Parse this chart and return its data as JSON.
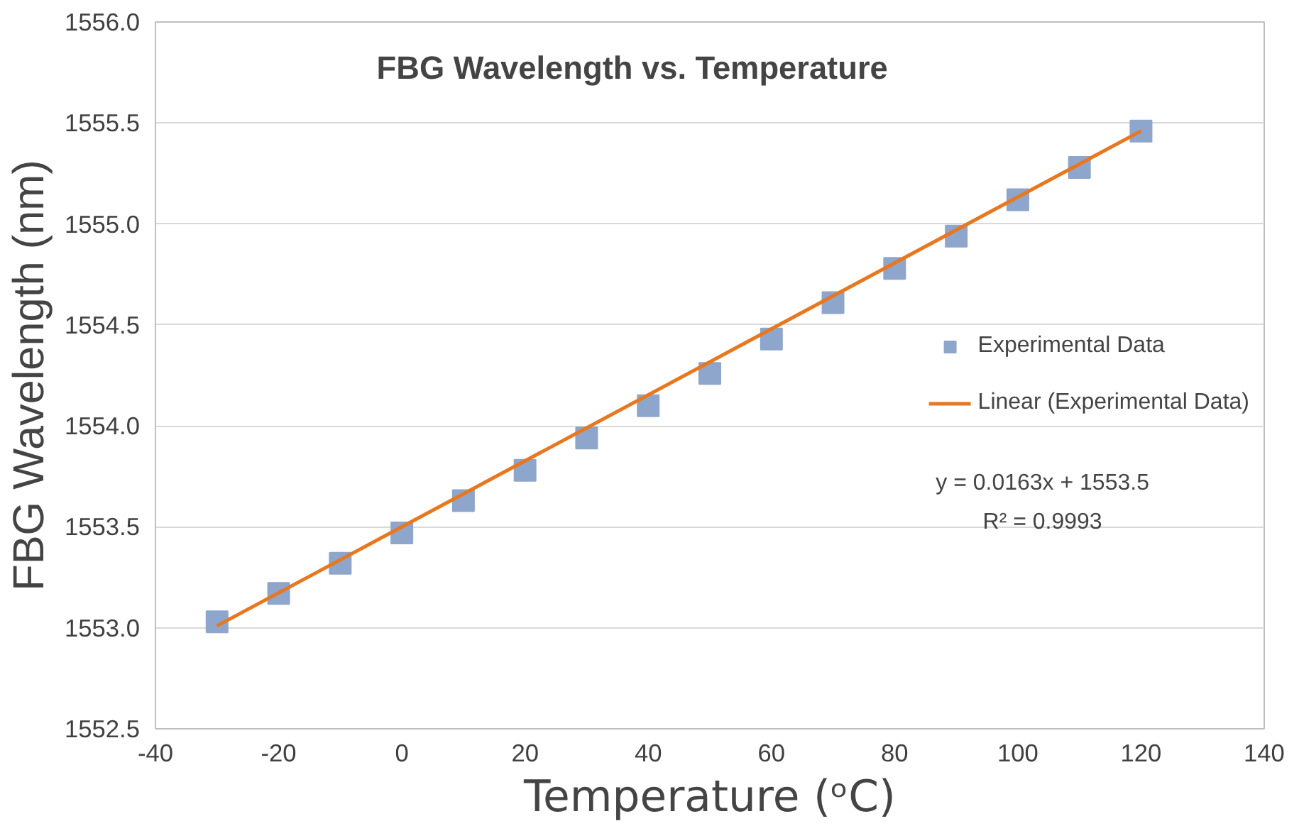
{
  "chart_data": {
    "type": "scatter",
    "title": "FBG Wavelength vs. Temperature",
    "xlabel": "Temperature (ᵒC)",
    "ylabel": "FBG Wavelength (nm)",
    "x": [
      -30,
      -20,
      -10,
      0,
      10,
      20,
      30,
      40,
      50,
      60,
      70,
      80,
      90,
      100,
      110,
      120
    ],
    "series": [
      {
        "name": "Experimental Data",
        "color": "#8ea5cc",
        "marker": "square",
        "values": [
          1553.03,
          1553.17,
          1553.32,
          1553.47,
          1553.63,
          1553.78,
          1553.94,
          1554.1,
          1554.26,
          1554.43,
          1554.61,
          1554.78,
          1554.94,
          1555.12,
          1555.28,
          1555.46
        ]
      },
      {
        "name": "Linear (Experimental Data)",
        "type": "line",
        "color": "#e8771e",
        "line_style": "solid",
        "x": [
          -30,
          120
        ],
        "values": [
          1553.01,
          1555.46
        ]
      }
    ],
    "annotations": [
      "y = 0.0163x + 1553.5",
      "R² = 0.9993"
    ],
    "xlim": [
      -40,
      140
    ],
    "xticks": [
      -40,
      -20,
      0,
      20,
      40,
      60,
      80,
      100,
      120,
      140
    ],
    "ylim": [
      1552.5,
      1556.0
    ],
    "yticks": [
      {
        "value": 1552.5,
        "label": "1552.5"
      },
      {
        "value": 1553.0,
        "label": "1553.0"
      },
      {
        "value": 1553.5,
        "label": "1553.5"
      },
      {
        "value": 1554.0,
        "label": "1554.0"
      },
      {
        "value": 1554.5,
        "label": "1554.5"
      },
      {
        "value": 1555.0,
        "label": "1555.0"
      },
      {
        "value": 1555.5,
        "label": "1555.5"
      },
      {
        "value": 1556.0,
        "label": "1556.0"
      }
    ],
    "grid": "y",
    "legend": "right"
  }
}
